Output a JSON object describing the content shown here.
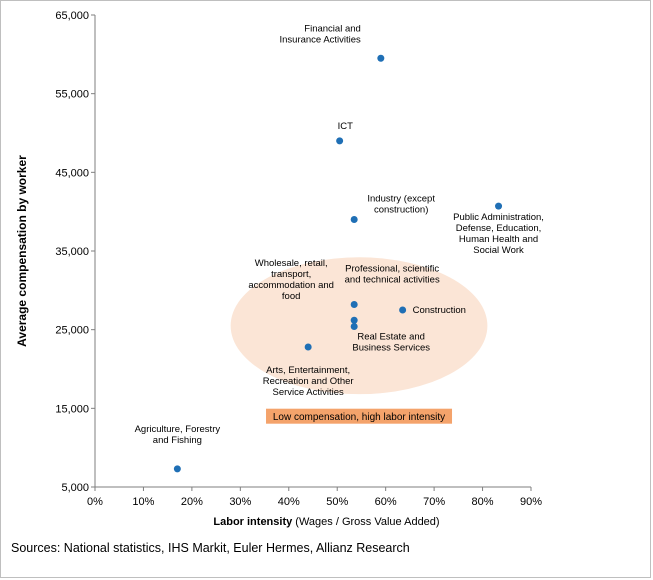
{
  "chart_data": {
    "type": "scatter",
    "xlabel_bold": "Labor intensity",
    "xlabel_rest": " (Wages / Gross Value Added)",
    "ylabel": "Average compensation by worker",
    "xlim": [
      0,
      0.9
    ],
    "ylim": [
      5000,
      65000
    ],
    "x_ticks": [
      {
        "v": 0,
        "label": "0%"
      },
      {
        "v": 0.1,
        "label": "10%"
      },
      {
        "v": 0.2,
        "label": "20%"
      },
      {
        "v": 0.3,
        "label": "30%"
      },
      {
        "v": 0.4,
        "label": "40%"
      },
      {
        "v": 0.5,
        "label": "50%"
      },
      {
        "v": 0.6,
        "label": "60%"
      },
      {
        "v": 0.7,
        "label": "70%"
      },
      {
        "v": 0.8,
        "label": "80%"
      },
      {
        "v": 0.9,
        "label": "90%"
      }
    ],
    "y_ticks": [
      {
        "v": 5000,
        "label": "5,000"
      },
      {
        "v": 15000,
        "label": "15,000"
      },
      {
        "v": 25000,
        "label": "25,000"
      },
      {
        "v": 35000,
        "label": "35,000"
      },
      {
        "v": 45000,
        "label": "45,000"
      },
      {
        "v": 55000,
        "label": "55,000"
      },
      {
        "v": 65000,
        "label": "65,000"
      }
    ],
    "point_color": "#1f6fb5",
    "points": [
      {
        "x": 0.59,
        "y": 59500,
        "label": [
          "Financial and",
          "Insurance Activities"
        ],
        "anchor": "end",
        "dx": -20,
        "dy": -16
      },
      {
        "x": 0.505,
        "y": 49000,
        "label": [
          "ICT"
        ],
        "anchor": "start",
        "dx": -2,
        "dy": -12
      },
      {
        "x": 0.535,
        "y": 39000,
        "label": [
          "Industry (except",
          "construction)"
        ],
        "anchor": "middle",
        "dx": 47,
        "dy": -7
      },
      {
        "x": 0.833,
        "y": 40700,
        "label": [
          "Public Administration,",
          "Defense, Education,",
          "Human Health and",
          "Social Work"
        ],
        "anchor": "middle",
        "dx": 0,
        "dy": 14
      },
      {
        "x": 0.535,
        "y": 28200,
        "label": [
          "Professional, scientific",
          "and technical activities"
        ],
        "anchor": "middle",
        "dx": 38,
        "dy": -22
      },
      {
        "x": 0.635,
        "y": 27500,
        "label": [
          "Construction"
        ],
        "anchor": "start",
        "dx": 10,
        "dy": 0
      },
      {
        "x": 0.535,
        "y": 26200,
        "label": [
          "Wholesale, retail,",
          "transport,",
          "accommodation and",
          "food"
        ],
        "anchor": "middle",
        "dx": -63,
        "dy": -21
      },
      {
        "x": 0.535,
        "y": 25400,
        "label": [
          "Real Estate and",
          "Business Services"
        ],
        "anchor": "middle",
        "dx": 37,
        "dy": 13
      },
      {
        "x": 0.44,
        "y": 22800,
        "label": [
          "Arts, Entertainment,",
          "Recreation and Other",
          "Service Activities"
        ],
        "anchor": "middle",
        "dx": 0,
        "dy": 26
      },
      {
        "x": 0.17,
        "y": 7300,
        "label": [
          "Agriculture, Forestry",
          "and Fishing"
        ],
        "anchor": "middle",
        "dx": 0,
        "dy": -26
      }
    ],
    "highlight": {
      "label": "Low compensation, high labor intensity",
      "ellipse_fill": "#fbe5d6",
      "box_fill": "#f4a36b",
      "center_x": 0.545,
      "center_y": 25500,
      "rx_x": 0.265,
      "ry_y": 8700,
      "label_x": 0.545,
      "label_y": 14000
    }
  },
  "source": "Sources: National statistics, IHS Markit, Euler Hermes, Allianz Research"
}
